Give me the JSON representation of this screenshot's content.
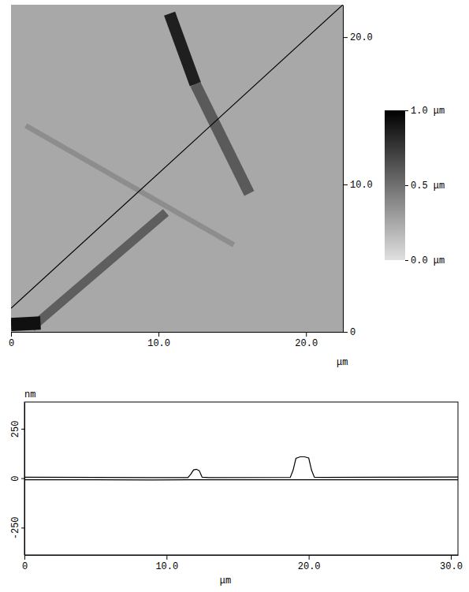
{
  "chart_data": [
    {
      "type": "image",
      "xlim": [
        0,
        22.5
      ],
      "ylim": [
        0,
        22.2
      ],
      "xticks": [
        0,
        {
          "value": 10,
          "label": "10.0"
        },
        {
          "value": 20,
          "label": "20.0"
        }
      ],
      "yticks": [
        0,
        {
          "value": 10,
          "label": "10.0"
        },
        {
          "value": 20,
          "label": "20.0"
        }
      ],
      "x_label": "μm",
      "background": 0.25,
      "rods": [
        {
          "start": [
            10.75,
            21.6
          ],
          "end": [
            12.5,
            16.8
          ],
          "width": 0.8,
          "z": 0.86
        },
        {
          "start": [
            12.5,
            16.8
          ],
          "end": [
            16.15,
            9.4
          ],
          "width": 0.75,
          "z": 0.6
        },
        {
          "start": [
            1.0,
            14.0
          ],
          "end": [
            15.1,
            5.9
          ],
          "width": 0.35,
          "z": 0.37
        },
        {
          "start": [
            1.4,
            0.3
          ],
          "end": [
            10.5,
            8.1
          ],
          "width": 0.6,
          "z": 0.58
        },
        {
          "start": [
            0.0,
            0.5
          ],
          "end": [
            2.0,
            0.6
          ],
          "width": 0.9,
          "z": 0.93
        }
      ],
      "profile_line": {
        "start": [
          0,
          1.6
        ],
        "end": [
          22.5,
          22.2
        ]
      },
      "colorbar": {
        "range": [
          0,
          1.0
        ],
        "ticks": [
          {
            "value": 0,
            "label": "0.0 μm"
          },
          {
            "value": 0.5,
            "label": "0.5 μm"
          },
          {
            "value": 1.0,
            "label": "1.0 μm"
          }
        ]
      }
    },
    {
      "type": "line",
      "x": [
        0,
        5,
        9,
        11.5,
        11.7,
        11.9,
        12.1,
        12.3,
        12.5,
        13,
        18.7,
        18.9,
        19.1,
        19.4,
        19.7,
        20.0,
        20.2,
        20.4,
        21,
        25,
        30.5
      ],
      "series": [
        {
          "values": [
            5,
            4,
            3,
            3,
            20,
            42,
            45,
            38,
            5,
            3,
            4,
            40,
            100,
            108,
            108,
            102,
            40,
            5,
            4,
            5,
            6
          ]
        },
        {
          "values": [
            -8,
            -8,
            -9,
            -8,
            -8,
            -8,
            -8,
            -8,
            -8,
            -8,
            -8,
            -8,
            -8,
            -8,
            -8,
            -8,
            -8,
            -8,
            -8,
            -8,
            -8
          ]
        }
      ],
      "color": "#000000",
      "xlim": [
        0,
        30.5
      ],
      "ylim": [
        -388,
        385
      ],
      "xticks": [
        0,
        {
          "value": 10,
          "label": "10.0"
        },
        {
          "value": 20,
          "label": "20.0"
        },
        {
          "value": 30,
          "label": "30.0"
        }
      ],
      "yticks": [
        -250,
        0,
        250
      ],
      "x_label": "μm",
      "y_label": "nm"
    }
  ]
}
